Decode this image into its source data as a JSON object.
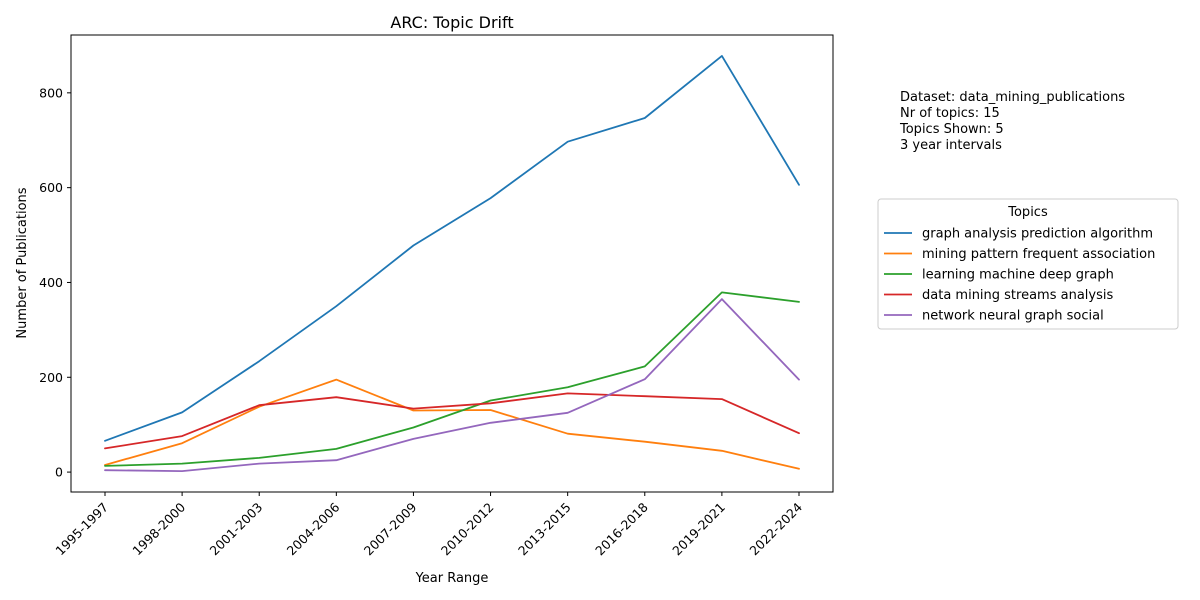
{
  "chart_data": {
    "type": "line",
    "title": "ARC: Topic Drift",
    "xlabel": "Year Range",
    "ylabel": "Number of Publications",
    "categories": [
      "1995-1997",
      "1998-2000",
      "2001-2003",
      "2004-2006",
      "2007-2009",
      "2010-2012",
      "2013-2015",
      "2016-2018",
      "2019-2021",
      "2022-2024"
    ],
    "yticks": [
      0,
      200,
      400,
      600,
      800
    ],
    "ylim": [
      -42,
      922
    ],
    "grid": false,
    "legend": {
      "title": "Topics",
      "placement": "right"
    },
    "series": [
      {
        "name": "graph analysis prediction algorithm",
        "color": "#1f77b4",
        "values": [
          66,
          126,
          234,
          350,
          478,
          578,
          697,
          747,
          878,
          606
        ]
      },
      {
        "name": "mining pattern frequent association",
        "color": "#ff7f0e",
        "values": [
          15,
          61,
          138,
          195,
          130,
          131,
          81,
          64,
          45,
          7
        ]
      },
      {
        "name": "learning machine deep graph",
        "color": "#2ca02c",
        "values": [
          13,
          18,
          30,
          49,
          94,
          151,
          179,
          223,
          379,
          359
        ]
      },
      {
        "name": "data mining streams analysis",
        "color": "#d62728",
        "values": [
          50,
          76,
          141,
          158,
          134,
          145,
          166,
          160,
          154,
          82
        ]
      },
      {
        "name": "network neural graph social",
        "color": "#9467bd",
        "values": [
          4,
          2,
          18,
          25,
          70,
          104,
          125,
          196,
          365,
          195
        ]
      }
    ]
  },
  "info": {
    "lines": [
      "Dataset: data_mining_publications",
      "Nr of topics: 15",
      "Topics Shown: 5",
      "3 year intervals"
    ]
  }
}
